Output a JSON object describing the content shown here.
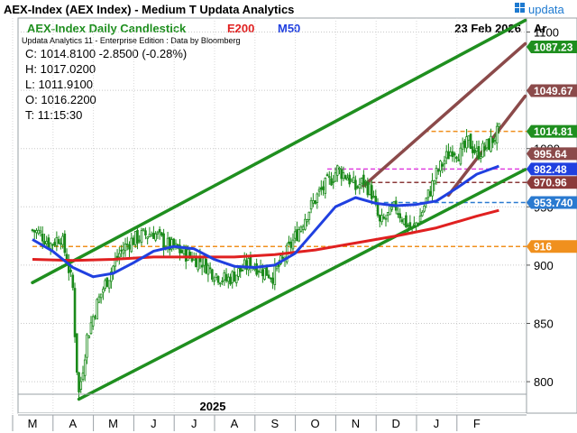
{
  "header": {
    "title": "AEX-Index (AEX Index) - Medium T  Updata Analytics",
    "brand": "updata",
    "brand_icon": "updata-logo-icon"
  },
  "subheader": {
    "chart_name": "AEX-Index Daily Candlestick",
    "e200_label": "E200",
    "m50_label": "M50",
    "date": "23 Feb 2026",
    "axis_unit": "Ar"
  },
  "info": {
    "edition": "Updata Analytics 11 - Enterprise Edition : Data by Bloomberg",
    "close": "C: 1014.8100  -2.8500 (-0.28%)",
    "high": "H: 1017.0200",
    "low": "L: 1011.9100",
    "open": "O: 1016.2200",
    "time": "T: 11:15:30"
  },
  "colors": {
    "candle": "#1a8a1a",
    "e200": "#e02020",
    "m50": "#2040e0",
    "channel": "#1f8f1f",
    "brown": "#8b4a4a",
    "orange": "#f0901e",
    "magenta": "#e040e0",
    "darkred": "#8b3a3a",
    "blue_dash": "#2a7ad0"
  },
  "chart_data": {
    "type": "candlestick",
    "title": "AEX-Index Daily Candlestick",
    "ylim": [
      773,
      1112
    ],
    "y_ticks": [
      800,
      850,
      900,
      950,
      1000,
      1050,
      1100
    ],
    "x_ticks": [
      "M",
      "A",
      "M",
      "J",
      "J",
      "A",
      "S",
      "O",
      "N",
      "D",
      "J",
      "F"
    ],
    "year_label": "2025",
    "price_series": [
      {
        "t": 0.0,
        "v": 930
      },
      {
        "t": 0.2,
        "v": 927
      },
      {
        "t": 0.45,
        "v": 918
      },
      {
        "t": 0.7,
        "v": 925
      },
      {
        "t": 0.85,
        "v": 905
      },
      {
        "t": 1.0,
        "v": 880
      },
      {
        "t": 1.08,
        "v": 820
      },
      {
        "t": 1.15,
        "v": 790
      },
      {
        "t": 1.22,
        "v": 805
      },
      {
        "t": 1.35,
        "v": 838
      },
      {
        "t": 1.55,
        "v": 862
      },
      {
        "t": 1.75,
        "v": 880
      },
      {
        "t": 1.95,
        "v": 895
      },
      {
        "t": 2.15,
        "v": 910
      },
      {
        "t": 2.4,
        "v": 920
      },
      {
        "t": 2.7,
        "v": 925
      },
      {
        "t": 3.0,
        "v": 928
      },
      {
        "t": 3.3,
        "v": 918
      },
      {
        "t": 3.6,
        "v": 913
      },
      {
        "t": 3.9,
        "v": 908
      },
      {
        "t": 4.2,
        "v": 903
      },
      {
        "t": 4.5,
        "v": 893
      },
      {
        "t": 4.8,
        "v": 887
      },
      {
        "t": 5.1,
        "v": 894
      },
      {
        "t": 5.4,
        "v": 902
      },
      {
        "t": 5.7,
        "v": 896
      },
      {
        "t": 5.95,
        "v": 891
      },
      {
        "t": 6.2,
        "v": 904
      },
      {
        "t": 6.5,
        "v": 924
      },
      {
        "t": 6.8,
        "v": 945
      },
      {
        "t": 7.1,
        "v": 962
      },
      {
        "t": 7.35,
        "v": 972
      },
      {
        "t": 7.55,
        "v": 982
      },
      {
        "t": 7.8,
        "v": 976
      },
      {
        "t": 8.0,
        "v": 966
      },
      {
        "t": 8.2,
        "v": 972
      },
      {
        "t": 8.4,
        "v": 962
      },
      {
        "t": 8.6,
        "v": 935
      },
      {
        "t": 8.8,
        "v": 942
      },
      {
        "t": 9.0,
        "v": 950
      },
      {
        "t": 9.2,
        "v": 938
      },
      {
        "t": 9.4,
        "v": 930
      },
      {
        "t": 9.6,
        "v": 942
      },
      {
        "t": 9.8,
        "v": 960
      },
      {
        "t": 10.0,
        "v": 978
      },
      {
        "t": 10.2,
        "v": 990
      },
      {
        "t": 10.4,
        "v": 1000
      },
      {
        "t": 10.6,
        "v": 995
      },
      {
        "t": 10.8,
        "v": 1006
      },
      {
        "t": 11.0,
        "v": 996
      },
      {
        "t": 11.2,
        "v": 1000
      },
      {
        "t": 11.4,
        "v": 1008
      },
      {
        "t": 11.55,
        "v": 1014.81
      }
    ],
    "series": [
      {
        "name": "E200",
        "points": [
          {
            "t": 0.0,
            "v": 905
          },
          {
            "t": 1.0,
            "v": 904
          },
          {
            "t": 2.0,
            "v": 905
          },
          {
            "t": 3.0,
            "v": 907
          },
          {
            "t": 4.0,
            "v": 907
          },
          {
            "t": 5.0,
            "v": 907
          },
          {
            "t": 6.0,
            "v": 909
          },
          {
            "t": 7.0,
            "v": 913
          },
          {
            "t": 8.0,
            "v": 919
          },
          {
            "t": 9.0,
            "v": 925
          },
          {
            "t": 10.0,
            "v": 932
          },
          {
            "t": 11.0,
            "v": 942
          },
          {
            "t": 11.55,
            "v": 947
          }
        ]
      },
      {
        "name": "M50",
        "points": [
          {
            "t": 0.0,
            "v": 922
          },
          {
            "t": 0.5,
            "v": 912
          },
          {
            "t": 1.0,
            "v": 898
          },
          {
            "t": 1.5,
            "v": 890
          },
          {
            "t": 2.0,
            "v": 893
          },
          {
            "t": 2.5,
            "v": 902
          },
          {
            "t": 3.0,
            "v": 912
          },
          {
            "t": 3.5,
            "v": 916
          },
          {
            "t": 4.0,
            "v": 914
          },
          {
            "t": 4.5,
            "v": 905
          },
          {
            "t": 5.0,
            "v": 899
          },
          {
            "t": 5.5,
            "v": 898
          },
          {
            "t": 6.0,
            "v": 900
          },
          {
            "t": 6.5,
            "v": 910
          },
          {
            "t": 7.0,
            "v": 930
          },
          {
            "t": 7.5,
            "v": 950
          },
          {
            "t": 8.0,
            "v": 958
          },
          {
            "t": 8.5,
            "v": 953
          },
          {
            "t": 9.0,
            "v": 951
          },
          {
            "t": 9.5,
            "v": 952
          },
          {
            "t": 10.0,
            "v": 955
          },
          {
            "t": 10.5,
            "v": 966
          },
          {
            "t": 11.0,
            "v": 978
          },
          {
            "t": 11.55,
            "v": 985
          }
        ]
      }
    ],
    "trend_lines": [
      {
        "kind": "channel-upper",
        "from": {
          "t": 0.0,
          "v": 885
        },
        "to": {
          "t": 12.2,
          "v": 1110
        }
      },
      {
        "kind": "channel-lower",
        "from": {
          "t": 1.15,
          "v": 785
        },
        "to": {
          "t": 12.2,
          "v": 982
        }
      },
      {
        "kind": "brown-upper",
        "from": {
          "t": 8.2,
          "v": 968
        },
        "to": {
          "t": 12.2,
          "v": 1090
        }
      },
      {
        "kind": "brown-lower",
        "from": {
          "t": 10.3,
          "v": 960
        },
        "to": {
          "t": 12.2,
          "v": 1045
        }
      }
    ],
    "levels": [
      {
        "value": 1014.81,
        "label": "1014.81",
        "style": "orange-dash",
        "from_t": 9.7
      },
      {
        "value": 982.48,
        "label": "982.48",
        "style": "magenta-dash",
        "from_t": 7.3
      },
      {
        "value": 970.96,
        "label": "970.96",
        "style": "darkred-dash",
        "from_t": 8.2
      },
      {
        "value": 953.74,
        "label": "953.740",
        "style": "blue-dash",
        "from_t": 8.7
      },
      {
        "value": 916,
        "label": "916",
        "style": "orange-dash",
        "from_t": 0.0
      }
    ],
    "price_labels": [
      {
        "value": 1087.23,
        "label": "1087.23",
        "color": "#1f8f1f"
      },
      {
        "value": 1049.67,
        "label": "1049.67",
        "color": "#8b4a4a"
      },
      {
        "value": 1014.81,
        "label": "1014.81",
        "color": "#1f8f1f"
      },
      {
        "value": 995.64,
        "label": "995.64",
        "color": "#8b4a4a"
      },
      {
        "value": 982.48,
        "label": "982.48",
        "color": "#2040e0"
      },
      {
        "value": 970.96,
        "label": "970.96",
        "color": "#8b3a3a"
      },
      {
        "value": 953.74,
        "label": "953.740",
        "color": "#2a7ad0"
      },
      {
        "value": 916,
        "label": "916",
        "color": "#f0901e"
      }
    ]
  }
}
